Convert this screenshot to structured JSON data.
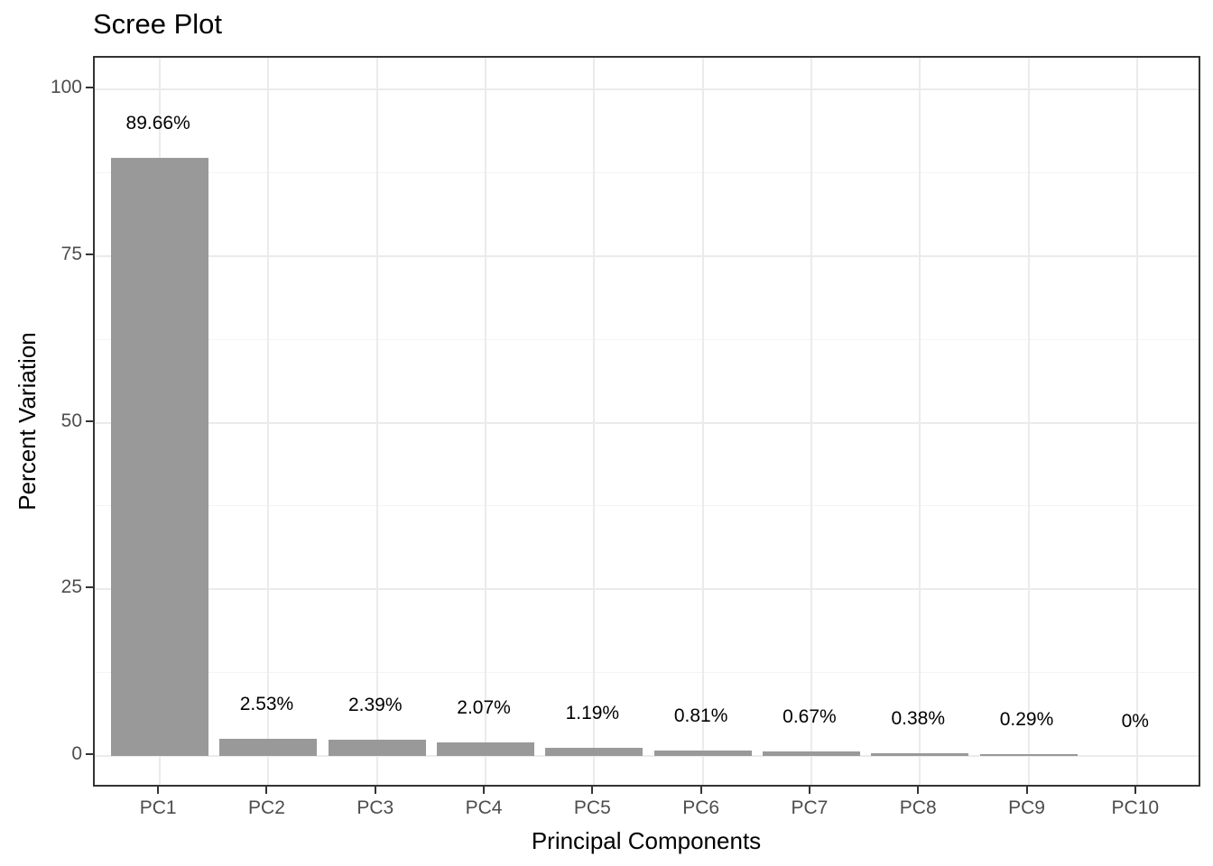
{
  "title": "Scree Plot",
  "chart_data": {
    "type": "bar",
    "title": "Scree Plot",
    "xlabel": "Principal Components",
    "ylabel": "Percent Variation",
    "categories": [
      "PC1",
      "PC2",
      "PC3",
      "PC4",
      "PC5",
      "PC6",
      "PC7",
      "PC8",
      "PC9",
      "PC10"
    ],
    "values": [
      89.66,
      2.53,
      2.39,
      2.07,
      1.19,
      0.81,
      0.67,
      0.38,
      0.29,
      0
    ],
    "bar_labels": [
      "89.66%",
      "2.53%",
      "2.39%",
      "2.07%",
      "1.19%",
      "0.81%",
      "0.67%",
      "0.38%",
      "0.29%",
      "0%"
    ],
    "ylim": [
      0,
      100
    ],
    "yticks": [
      0,
      25,
      50,
      75,
      100
    ],
    "yticks_minor": [
      12.5,
      37.5,
      62.5,
      87.5
    ],
    "grid": true,
    "legend": "none",
    "colors": {
      "bar_fill": "#999999",
      "grid_major": "#ebebeb",
      "grid_minor": "#f4f4f4",
      "panel_border": "#333333",
      "tick_text": "#4d4d4d",
      "title_text": "#000000"
    }
  }
}
